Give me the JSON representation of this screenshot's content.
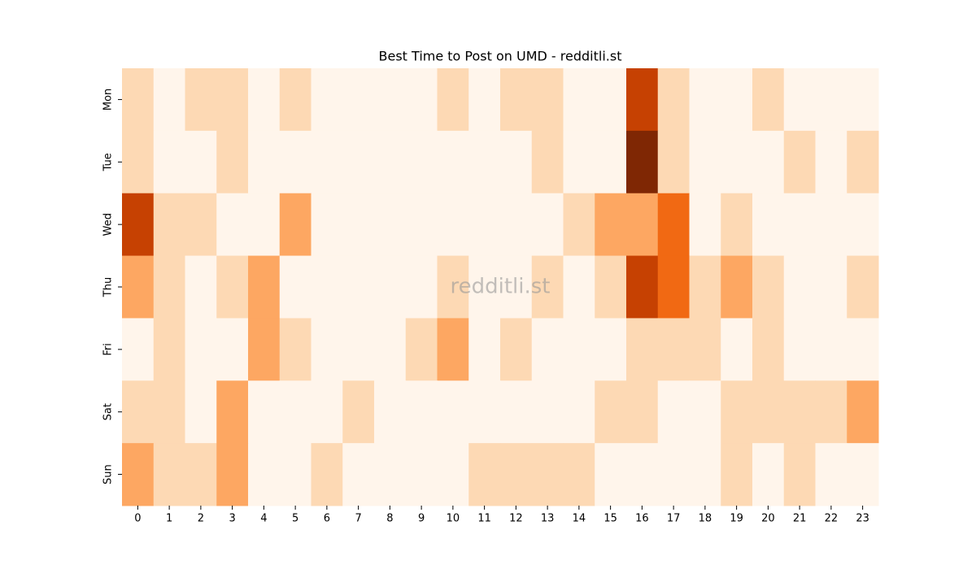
{
  "chart_data": {
    "type": "heatmap",
    "title": "Best Time to Post on UMD - redditli.st",
    "watermark": "redditli.st",
    "x": [
      0,
      1,
      2,
      3,
      4,
      5,
      6,
      7,
      8,
      9,
      10,
      11,
      12,
      13,
      14,
      15,
      16,
      17,
      18,
      19,
      20,
      21,
      22,
      23
    ],
    "y": [
      "Mon",
      "Tue",
      "Wed",
      "Thu",
      "Fri",
      "Sat",
      "Sun"
    ],
    "values": [
      [
        1,
        0,
        1,
        1,
        0,
        1,
        0,
        0,
        0,
        0,
        1,
        0,
        1,
        1,
        0,
        0,
        4,
        1,
        0,
        0,
        1,
        0,
        0,
        0
      ],
      [
        1,
        0,
        0,
        1,
        0,
        0,
        0,
        0,
        0,
        0,
        0,
        0,
        0,
        1,
        0,
        0,
        5,
        1,
        0,
        0,
        0,
        1,
        0,
        1
      ],
      [
        4,
        1,
        1,
        0,
        0,
        2,
        0,
        0,
        0,
        0,
        0,
        0,
        0,
        0,
        1,
        2,
        2,
        3,
        0,
        1,
        0,
        0,
        0,
        0
      ],
      [
        2,
        1,
        0,
        1,
        2,
        0,
        0,
        0,
        0,
        0,
        1,
        0,
        0,
        1,
        0,
        1,
        4,
        3,
        1,
        2,
        1,
        0,
        0,
        1
      ],
      [
        0,
        1,
        0,
        0,
        2,
        1,
        0,
        0,
        0,
        1,
        2,
        0,
        1,
        0,
        0,
        0,
        1,
        1,
        1,
        0,
        1,
        0,
        0,
        0
      ],
      [
        1,
        1,
        0,
        2,
        0,
        0,
        0,
        1,
        0,
        0,
        0,
        0,
        0,
        0,
        0,
        1,
        1,
        0,
        0,
        1,
        1,
        1,
        1,
        2
      ],
      [
        2,
        1,
        1,
        2,
        0,
        0,
        1,
        0,
        0,
        0,
        0,
        1,
        1,
        1,
        1,
        0,
        0,
        0,
        0,
        1,
        0,
        1,
        0,
        0
      ]
    ],
    "zlim": [
      0,
      5
    ],
    "colors": [
      "#fff5eb",
      "#fdd9b4",
      "#fda762",
      "#f16913",
      "#c64102",
      "#7f2704"
    ]
  }
}
